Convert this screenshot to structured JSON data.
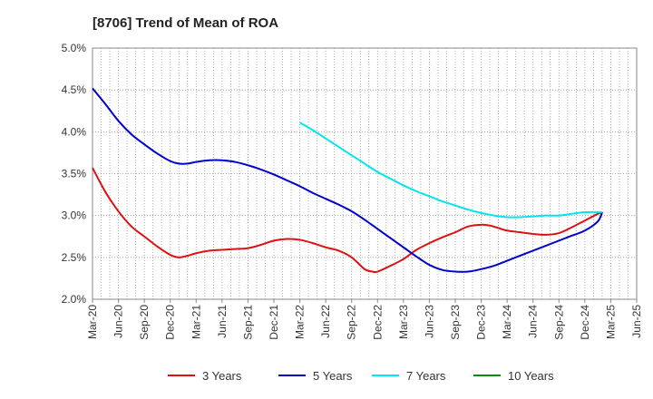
{
  "chart_data": {
    "type": "line",
    "title": "[8706]  Trend of Mean of ROA",
    "xlabel": "",
    "ylabel": "",
    "ylim": [
      2.0,
      5.0
    ],
    "yticks": [
      "2.0%",
      "2.5%",
      "3.0%",
      "3.5%",
      "4.0%",
      "4.5%",
      "5.0%"
    ],
    "grid": true,
    "legend_position": "bottom",
    "categories": [
      "Mar-20",
      "Jun-20",
      "Sep-20",
      "Dec-20",
      "Mar-21",
      "Jun-21",
      "Sep-21",
      "Dec-21",
      "Mar-22",
      "Jun-22",
      "Sep-22",
      "Dec-22",
      "Mar-23",
      "Jun-23",
      "Sep-23",
      "Dec-23",
      "Mar-24",
      "Jun-24",
      "Sep-24",
      "Dec-24",
      "Mar-25",
      "Jun-25"
    ],
    "series": [
      {
        "name": "3 Years",
        "color": "#dd1111",
        "points": [
          [
            0,
            3.57
          ],
          [
            0.5,
            3.28
          ],
          [
            1,
            3.05
          ],
          [
            1.5,
            2.87
          ],
          [
            2,
            2.75
          ],
          [
            2.5,
            2.63
          ],
          [
            3,
            2.53
          ],
          [
            3.33,
            2.5
          ],
          [
            3.67,
            2.52
          ],
          [
            4,
            2.55
          ],
          [
            4.5,
            2.58
          ],
          [
            5,
            2.59
          ],
          [
            5.5,
            2.6
          ],
          [
            6,
            2.61
          ],
          [
            6.5,
            2.65
          ],
          [
            7,
            2.7
          ],
          [
            7.5,
            2.72
          ],
          [
            8,
            2.71
          ],
          [
            8.5,
            2.67
          ],
          [
            9,
            2.62
          ],
          [
            9.5,
            2.58
          ],
          [
            10,
            2.5
          ],
          [
            10.5,
            2.36
          ],
          [
            10.8,
            2.33
          ],
          [
            11,
            2.33
          ],
          [
            11.5,
            2.4
          ],
          [
            12,
            2.48
          ],
          [
            12.5,
            2.59
          ],
          [
            13,
            2.67
          ],
          [
            13.5,
            2.74
          ],
          [
            14,
            2.8
          ],
          [
            14.5,
            2.87
          ],
          [
            15,
            2.89
          ],
          [
            15.33,
            2.88
          ],
          [
            15.67,
            2.85
          ],
          [
            16,
            2.82
          ],
          [
            16.5,
            2.8
          ],
          [
            17,
            2.78
          ],
          [
            17.5,
            2.77
          ],
          [
            18,
            2.79
          ],
          [
            18.5,
            2.86
          ],
          [
            19,
            2.94
          ],
          [
            19.5,
            3.02
          ],
          [
            19.67,
            3.04
          ]
        ]
      },
      {
        "name": "5 Years",
        "color": "#0000cc",
        "points": [
          [
            0,
            4.52
          ],
          [
            0.5,
            4.33
          ],
          [
            1,
            4.13
          ],
          [
            1.5,
            3.97
          ],
          [
            2,
            3.85
          ],
          [
            2.5,
            3.74
          ],
          [
            3,
            3.65
          ],
          [
            3.33,
            3.62
          ],
          [
            3.67,
            3.62
          ],
          [
            4,
            3.64
          ],
          [
            4.5,
            3.66
          ],
          [
            5,
            3.66
          ],
          [
            5.5,
            3.64
          ],
          [
            6,
            3.6
          ],
          [
            6.5,
            3.55
          ],
          [
            7,
            3.49
          ],
          [
            7.5,
            3.42
          ],
          [
            8,
            3.35
          ],
          [
            8.5,
            3.27
          ],
          [
            9,
            3.2
          ],
          [
            9.5,
            3.13
          ],
          [
            10,
            3.05
          ],
          [
            10.5,
            2.95
          ],
          [
            11,
            2.84
          ],
          [
            11.5,
            2.73
          ],
          [
            12,
            2.62
          ],
          [
            12.5,
            2.51
          ],
          [
            13,
            2.41
          ],
          [
            13.5,
            2.35
          ],
          [
            14,
            2.33
          ],
          [
            14.5,
            2.33
          ],
          [
            15,
            2.36
          ],
          [
            15.5,
            2.4
          ],
          [
            16,
            2.46
          ],
          [
            16.5,
            2.52
          ],
          [
            17,
            2.58
          ],
          [
            17.5,
            2.64
          ],
          [
            18,
            2.7
          ],
          [
            18.5,
            2.76
          ],
          [
            19,
            2.82
          ],
          [
            19.5,
            2.93
          ],
          [
            19.67,
            3.04
          ]
        ]
      },
      {
        "name": "7 Years",
        "color": "#00e5ee",
        "points": [
          [
            8,
            4.11
          ],
          [
            8.5,
            4.02
          ],
          [
            9,
            3.92
          ],
          [
            9.5,
            3.82
          ],
          [
            10,
            3.72
          ],
          [
            10.5,
            3.62
          ],
          [
            11,
            3.52
          ],
          [
            11.5,
            3.44
          ],
          [
            12,
            3.36
          ],
          [
            12.5,
            3.29
          ],
          [
            13,
            3.23
          ],
          [
            13.5,
            3.17
          ],
          [
            14,
            3.12
          ],
          [
            14.5,
            3.07
          ],
          [
            15,
            3.03
          ],
          [
            15.5,
            3.0
          ],
          [
            16,
            2.98
          ],
          [
            16.5,
            2.98
          ],
          [
            17,
            2.99
          ],
          [
            17.5,
            3.0
          ],
          [
            18,
            3.0
          ],
          [
            18.5,
            3.02
          ],
          [
            19,
            3.04
          ],
          [
            19.67,
            3.04
          ]
        ]
      },
      {
        "name": "10 Years",
        "color": "#118811",
        "points": []
      }
    ]
  }
}
